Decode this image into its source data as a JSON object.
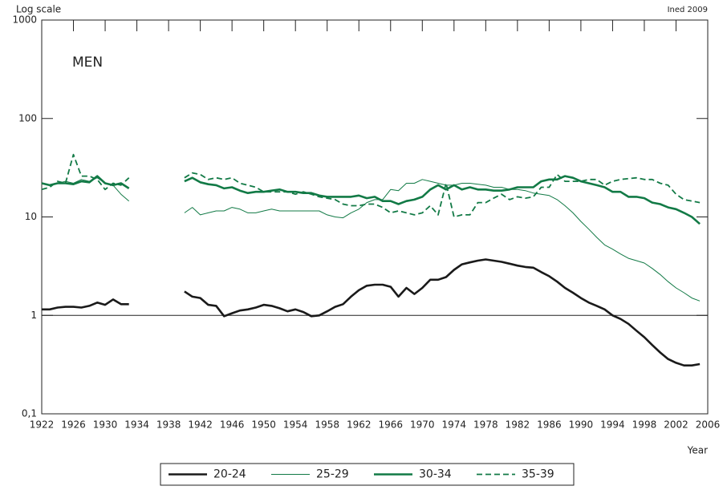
{
  "chart_data": {
    "type": "line",
    "y_label": "Log scale",
    "source": "Ined 2009",
    "annotation": "MEN",
    "x_label": "Year",
    "log_scale_y": true,
    "reference_line": 1,
    "xlim": [
      1922,
      2006
    ],
    "xticks": [
      1922,
      1926,
      1930,
      1934,
      1938,
      1942,
      1946,
      1950,
      1954,
      1958,
      1962,
      1966,
      1970,
      1974,
      1978,
      1982,
      1986,
      1990,
      1994,
      1998,
      2002,
      2006
    ],
    "ylim": [
      0.1,
      1000
    ],
    "yticks": [
      {
        "value": 0.1,
        "label": "0,1"
      },
      1,
      10,
      100,
      1000
    ],
    "x": [
      1922,
      1923,
      1924,
      1925,
      1926,
      1927,
      1928,
      1929,
      1930,
      1931,
      1932,
      1933,
      1934,
      1935,
      1936,
      1937,
      1938,
      1939,
      1940,
      1941,
      1942,
      1943,
      1944,
      1945,
      1946,
      1947,
      1948,
      1949,
      1950,
      1951,
      1952,
      1953,
      1954,
      1955,
      1956,
      1957,
      1958,
      1959,
      1960,
      1961,
      1962,
      1963,
      1964,
      1965,
      1966,
      1967,
      1968,
      1969,
      1970,
      1971,
      1972,
      1973,
      1974,
      1975,
      1976,
      1977,
      1978,
      1979,
      1980,
      1981,
      1982,
      1983,
      1984,
      1985,
      1986,
      1987,
      1988,
      1989,
      1990,
      1991,
      1992,
      1993,
      1994,
      1995,
      1996,
      1997,
      1998,
      1999,
      2000,
      2001,
      2002,
      2003,
      2004,
      2005
    ],
    "series": [
      {
        "name": "20-24",
        "color": "#1a1a1a",
        "line_width": 2.6,
        "dashed": false,
        "values": [
          1.15,
          1.15,
          1.2,
          1.22,
          1.22,
          1.2,
          1.25,
          1.35,
          1.28,
          1.45,
          1.3,
          1.3,
          null,
          null,
          null,
          null,
          null,
          null,
          1.75,
          1.55,
          1.5,
          1.28,
          1.25,
          0.98,
          1.05,
          1.12,
          1.15,
          1.2,
          1.28,
          1.25,
          1.18,
          1.1,
          1.15,
          1.08,
          0.98,
          1.0,
          1.1,
          1.22,
          1.3,
          1.55,
          1.8,
          2.0,
          2.05,
          2.05,
          1.95,
          1.55,
          1.9,
          1.65,
          1.9,
          2.3,
          2.3,
          2.45,
          2.9,
          3.3,
          3.45,
          3.6,
          3.7,
          3.6,
          3.5,
          3.35,
          3.2,
          3.1,
          3.05,
          2.75,
          2.5,
          2.2,
          1.9,
          1.7,
          1.5,
          1.35,
          1.25,
          1.15,
          1.0,
          0.92,
          0.82,
          0.7,
          0.6,
          0.5,
          0.42,
          0.36,
          0.33,
          0.31,
          0.31,
          0.32
        ]
      },
      {
        "name": "25-29",
        "color": "#127a46",
        "line_width": 1,
        "dashed": false,
        "values": [
          22,
          21,
          22,
          23,
          22,
          24,
          23,
          25,
          22,
          21,
          17,
          14.5,
          null,
          null,
          null,
          null,
          null,
          null,
          11,
          12.5,
          10.5,
          11,
          11.5,
          11.5,
          12.5,
          12,
          11,
          11,
          11.5,
          12,
          11.5,
          11.5,
          11.5,
          11.5,
          11.5,
          11.5,
          10.5,
          10,
          9.8,
          11,
          12,
          14,
          15,
          15,
          19,
          18.5,
          22,
          22,
          24,
          23,
          22,
          21,
          21,
          22,
          22,
          21.5,
          21,
          20,
          20,
          19,
          19,
          18.5,
          17.5,
          17,
          16.5,
          15,
          13,
          11,
          9,
          7.5,
          6.2,
          5.2,
          4.7,
          4.2,
          3.8,
          3.6,
          3.4,
          3.0,
          2.6,
          2.2,
          1.9,
          1.7,
          1.5,
          1.4
        ]
      },
      {
        "name": "30-34",
        "color": "#127a46",
        "line_width": 2.6,
        "dashed": false,
        "values": [
          22,
          21,
          22,
          22,
          21.5,
          23,
          22.5,
          26,
          22,
          21,
          22,
          19.5,
          null,
          null,
          null,
          null,
          null,
          null,
          23,
          25,
          22.5,
          21.5,
          21,
          19.5,
          20,
          18.5,
          17.5,
          18,
          18,
          18.5,
          19,
          18,
          18,
          17.5,
          17.5,
          16.5,
          16,
          16,
          16,
          16,
          16.5,
          15.5,
          16,
          14.5,
          14.5,
          13.5,
          14.5,
          15,
          16,
          19,
          21,
          19,
          21,
          19,
          20,
          19,
          19,
          18.5,
          18.5,
          19,
          20,
          20,
          20,
          23,
          24,
          24,
          26,
          25,
          23,
          22,
          21,
          20,
          18,
          18,
          16,
          16,
          15.5,
          14,
          13.5,
          12.5,
          12,
          11,
          10,
          8.5
        ]
      },
      {
        "name": "35-39",
        "color": "#127a46",
        "line_width": 1.8,
        "dashed": true,
        "values": [
          19,
          20,
          23,
          22,
          43,
          26,
          26,
          24,
          19,
          22,
          21,
          25,
          null,
          null,
          null,
          null,
          null,
          null,
          25,
          28,
          27,
          24,
          25,
          24,
          25,
          22,
          21,
          20,
          18,
          18,
          18,
          18,
          17,
          18,
          17,
          16,
          15.5,
          15,
          13.5,
          13,
          13,
          13.5,
          13.5,
          12.5,
          11,
          11.5,
          11,
          10.5,
          11,
          13,
          10.5,
          22,
          10,
          10.5,
          10.5,
          14,
          14,
          15.5,
          17,
          15,
          16,
          15.5,
          16,
          20,
          20,
          27,
          23,
          23,
          23,
          24,
          24,
          21,
          23,
          24,
          24.5,
          25,
          24,
          24,
          22,
          21,
          17,
          15,
          14.5,
          14
        ]
      }
    ]
  }
}
